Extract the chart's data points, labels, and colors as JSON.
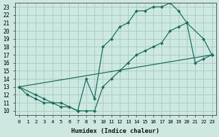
{
  "xlabel": "Humidex (Indice chaleur)",
  "bg_color": "#cce8e0",
  "grid_color": "#aaccC4",
  "line_color": "#1a6b5a",
  "xlim": [
    -0.5,
    23.5
  ],
  "ylim": [
    9.5,
    23.5
  ],
  "xticks": [
    0,
    1,
    2,
    3,
    4,
    5,
    6,
    7,
    8,
    9,
    10,
    11,
    12,
    13,
    14,
    15,
    16,
    17,
    18,
    19,
    20,
    21,
    22,
    23
  ],
  "yticks": [
    10,
    11,
    12,
    13,
    14,
    15,
    16,
    17,
    18,
    19,
    20,
    21,
    22,
    23
  ],
  "line1_x": [
    0,
    1,
    2,
    3,
    4,
    5,
    6,
    7,
    8,
    9,
    10,
    11,
    12,
    13,
    14,
    15,
    16,
    17,
    18,
    19,
    20,
    21,
    22,
    23
  ],
  "line1_y": [
    13,
    12,
    11.5,
    11,
    11,
    10.5,
    10.5,
    10,
    10,
    10,
    13,
    14,
    15,
    16,
    17,
    17.5,
    18,
    18.5,
    20,
    20.5,
    21,
    16,
    16.5,
    17
  ],
  "line2_x": [
    0,
    2,
    3,
    4,
    5,
    6,
    7,
    8,
    9,
    10,
    11,
    12,
    13,
    14,
    15,
    16,
    17,
    18,
    19,
    20,
    22,
    23
  ],
  "line2_y": [
    13,
    12,
    11.5,
    11,
    11,
    10.5,
    10,
    14,
    11.5,
    18,
    19,
    20.5,
    21,
    22.5,
    22.5,
    23,
    23,
    23.5,
    22.5,
    21,
    19,
    17
  ],
  "line3_x": [
    0,
    23
  ],
  "line3_y": [
    13,
    17
  ]
}
